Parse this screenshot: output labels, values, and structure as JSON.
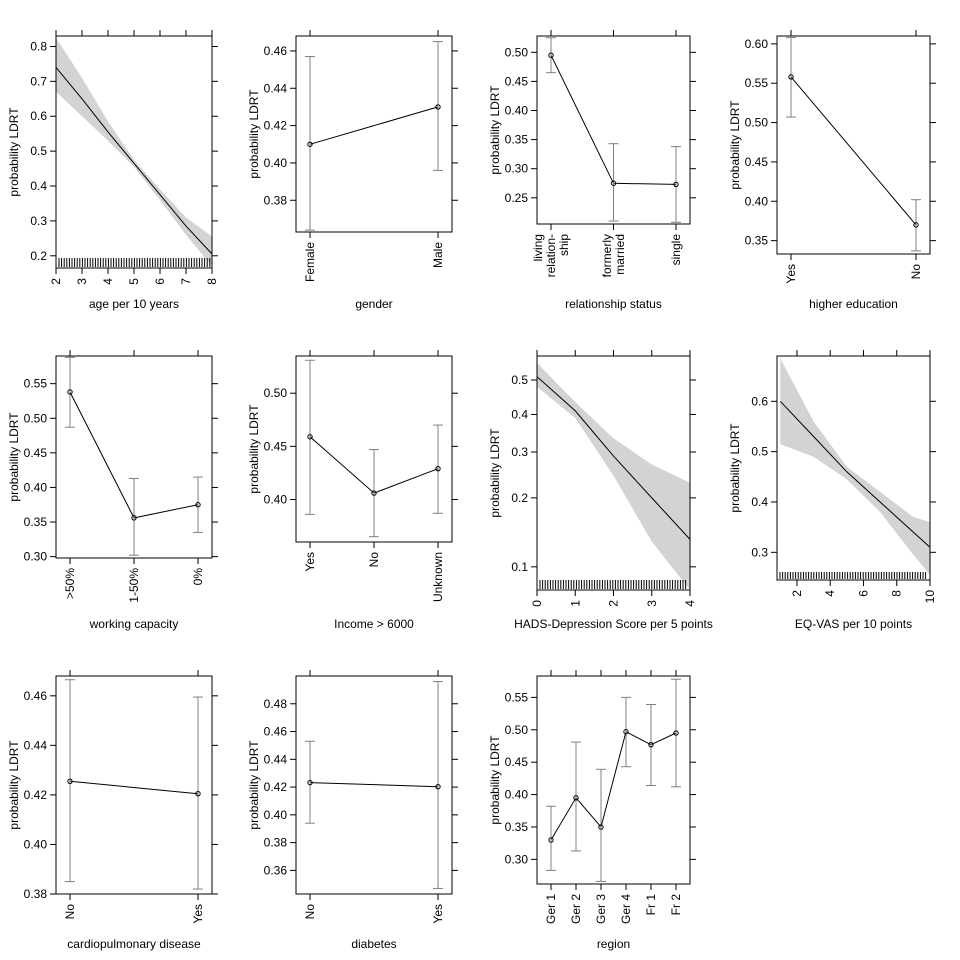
{
  "chart_data": [
    {
      "type": "line",
      "xlabel": "age per 10 years",
      "ylabel": "probability LDRT",
      "x_ticks": [
        2,
        3,
        4,
        5,
        6,
        7,
        8
      ],
      "x_tick_labels": [
        "2",
        "3",
        "4",
        "5",
        "6",
        "7",
        "8"
      ],
      "y_ticks": [
        0.2,
        0.3,
        0.4,
        0.5,
        0.6,
        0.7,
        0.8
      ],
      "y_tick_labels": [
        "0.2",
        "0.3",
        "0.4",
        "0.5",
        "0.6",
        "0.7",
        "0.8"
      ],
      "xlim": [
        2,
        8
      ],
      "ylim": [
        0.165,
        0.83
      ],
      "fit": {
        "x": [
          2,
          3,
          4,
          5,
          6,
          7,
          8
        ],
        "y": [
          0.74,
          0.65,
          0.555,
          0.465,
          0.375,
          0.285,
          0.205
        ]
      },
      "band_upper": [
        0.825,
        0.71,
        0.585,
        0.475,
        0.39,
        0.31,
        0.255
      ],
      "band_lower": [
        0.67,
        0.6,
        0.53,
        0.455,
        0.36,
        0.26,
        0.17
      ],
      "rug": true
    },
    {
      "type": "line",
      "xlabel": "gender",
      "ylabel": "probability LDRT",
      "categories": [
        "Female",
        "Male"
      ],
      "values": [
        0.41,
        0.43
      ],
      "lower": [
        0.364,
        0.396
      ],
      "upper": [
        0.457,
        0.465
      ],
      "y_ticks": [
        0.38,
        0.4,
        0.42,
        0.44,
        0.46
      ],
      "y_tick_labels": [
        "0.38",
        "0.40",
        "0.42",
        "0.44",
        "0.46"
      ],
      "ylim": [
        0.363,
        0.468
      ]
    },
    {
      "type": "line",
      "xlabel": "relationship status",
      "ylabel": "probability LDRT",
      "categories": [
        [
          "living",
          "relation-",
          "ship"
        ],
        [
          "formerly",
          "married"
        ],
        [
          "single"
        ]
      ],
      "values": [
        0.495,
        0.275,
        0.273
      ],
      "lower": [
        0.465,
        0.21,
        0.208
      ],
      "upper": [
        0.525,
        0.343,
        0.338
      ],
      "y_ticks": [
        0.25,
        0.3,
        0.35,
        0.4,
        0.45,
        0.5
      ],
      "y_tick_labels": [
        "0.25",
        "0.30",
        "0.35",
        "0.40",
        "0.45",
        "0.50"
      ],
      "ylim": [
        0.205,
        0.528
      ]
    },
    {
      "type": "line",
      "xlabel": "higher education",
      "ylabel": "probability LDRT",
      "categories": [
        "Yes",
        "No"
      ],
      "values": [
        0.558,
        0.37
      ],
      "lower": [
        0.507,
        0.337
      ],
      "upper": [
        0.608,
        0.402
      ],
      "y_ticks": [
        0.35,
        0.4,
        0.45,
        0.5,
        0.55,
        0.6
      ],
      "y_tick_labels": [
        "0.35",
        "0.40",
        "0.45",
        "0.50",
        "0.55",
        "0.60"
      ],
      "ylim": [
        0.333,
        0.61
      ]
    },
    {
      "type": "line",
      "xlabel": "working capacity",
      "ylabel": "probability LDRT",
      "categories": [
        ">50%",
        "1-50%",
        "0%"
      ],
      "values": [
        0.538,
        0.356,
        0.375
      ],
      "lower": [
        0.487,
        0.302,
        0.335
      ],
      "upper": [
        0.588,
        0.413,
        0.415
      ],
      "y_ticks": [
        0.3,
        0.35,
        0.4,
        0.45,
        0.5,
        0.55
      ],
      "y_tick_labels": [
        "0.30",
        "0.35",
        "0.40",
        "0.45",
        "0.50",
        "0.55"
      ],
      "ylim": [
        0.298,
        0.59
      ]
    },
    {
      "type": "line",
      "xlabel": "Income > 6000",
      "ylabel": "probability LDRT",
      "categories": [
        "Yes",
        "No",
        "Unknown"
      ],
      "values": [
        0.459,
        0.406,
        0.429
      ],
      "lower": [
        0.386,
        0.365,
        0.387
      ],
      "upper": [
        0.531,
        0.447,
        0.47
      ],
      "y_ticks": [
        0.4,
        0.45,
        0.5
      ],
      "y_tick_labels": [
        "0.40",
        "0.45",
        "0.50"
      ],
      "ylim": [
        0.36,
        0.535
      ]
    },
    {
      "type": "line",
      "xlabel": "HADS-Depression Score per 5 points",
      "ylabel": "probability LDRT",
      "x_ticks": [
        0,
        1,
        2,
        3,
        4
      ],
      "x_tick_labels": [
        "0",
        "1",
        "2",
        "3",
        "4"
      ],
      "y_ticks": [
        0.1,
        0.2,
        0.3,
        0.4,
        0.5
      ],
      "y_tick_labels": [
        "0.1",
        "0.2",
        "0.3",
        "0.4",
        "0.5"
      ],
      "xlim": [
        0,
        4
      ],
      "ylim": [
        0.078,
        0.57
      ],
      "y_scale": "logit",
      "fit": {
        "x": [
          0,
          1,
          2,
          3,
          4
        ],
        "y": [
          0.51,
          0.41,
          0.29,
          0.2,
          0.133
        ]
      },
      "band_upper": [
        0.55,
        0.435,
        0.335,
        0.27,
        0.23
      ],
      "band_lower": [
        0.48,
        0.39,
        0.245,
        0.13,
        0.078
      ],
      "rug": true
    },
    {
      "type": "line",
      "xlabel": "EQ-VAS per 10 points",
      "ylabel": "probability LDRT",
      "x_ticks": [
        2,
        4,
        6,
        8,
        10
      ],
      "x_tick_labels": [
        "2",
        "4",
        "6",
        "8",
        "10"
      ],
      "y_ticks": [
        0.3,
        0.4,
        0.5,
        0.6
      ],
      "y_tick_labels": [
        "0.3",
        "0.4",
        "0.5",
        "0.6"
      ],
      "xlim": [
        0.8,
        10
      ],
      "ylim": [
        0.245,
        0.69
      ],
      "fit": {
        "x": [
          1,
          3,
          5,
          7,
          9,
          10
        ],
        "y": [
          0.6,
          0.53,
          0.46,
          0.4,
          0.34,
          0.31
        ]
      },
      "band_upper": [
        0.685,
        0.56,
        0.47,
        0.42,
        0.37,
        0.36
      ],
      "band_lower": [
        0.515,
        0.49,
        0.445,
        0.38,
        0.295,
        0.255
      ],
      "rug": true
    },
    {
      "type": "line",
      "xlabel": "cardiopulmonary disease",
      "ylabel": "probability LDRT",
      "categories": [
        "No",
        "Yes"
      ],
      "values": [
        0.4255,
        0.4205
      ],
      "lower": [
        0.385,
        0.382
      ],
      "upper": [
        0.4665,
        0.4595
      ],
      "y_ticks": [
        0.38,
        0.4,
        0.42,
        0.44,
        0.46
      ],
      "y_tick_labels": [
        "0.38",
        "0.40",
        "0.42",
        "0.44",
        "0.46"
      ],
      "ylim": [
        0.38,
        0.468
      ]
    },
    {
      "type": "line",
      "xlabel": "diabetes",
      "ylabel": "probability LDRT",
      "categories": [
        "No",
        "Yes"
      ],
      "values": [
        0.4232,
        0.4203
      ],
      "lower": [
        0.394,
        0.347
      ],
      "upper": [
        0.453,
        0.496
      ],
      "y_ticks": [
        0.36,
        0.38,
        0.4,
        0.42,
        0.44,
        0.46,
        0.48
      ],
      "y_tick_labels": [
        "0.36",
        "0.38",
        "0.40",
        "0.42",
        "0.44",
        "0.46",
        "0.48"
      ],
      "ylim": [
        0.343,
        0.5
      ]
    },
    {
      "type": "line",
      "xlabel": "region",
      "ylabel": "probability LDRT",
      "categories": [
        "Ger 1",
        "Ger 2",
        "Ger 3",
        "Ger 4",
        "Fr 1",
        "Fr 2"
      ],
      "values": [
        0.33,
        0.395,
        0.35,
        0.497,
        0.477,
        0.495
      ],
      "lower": [
        0.283,
        0.313,
        0.266,
        0.443,
        0.414,
        0.412
      ],
      "upper": [
        0.382,
        0.481,
        0.439,
        0.55,
        0.539,
        0.578
      ],
      "y_ticks": [
        0.3,
        0.35,
        0.4,
        0.45,
        0.5,
        0.55
      ],
      "y_tick_labels": [
        "0.30",
        "0.35",
        "0.40",
        "0.45",
        "0.50",
        "0.55"
      ],
      "ylim": [
        0.262,
        0.583
      ]
    }
  ]
}
